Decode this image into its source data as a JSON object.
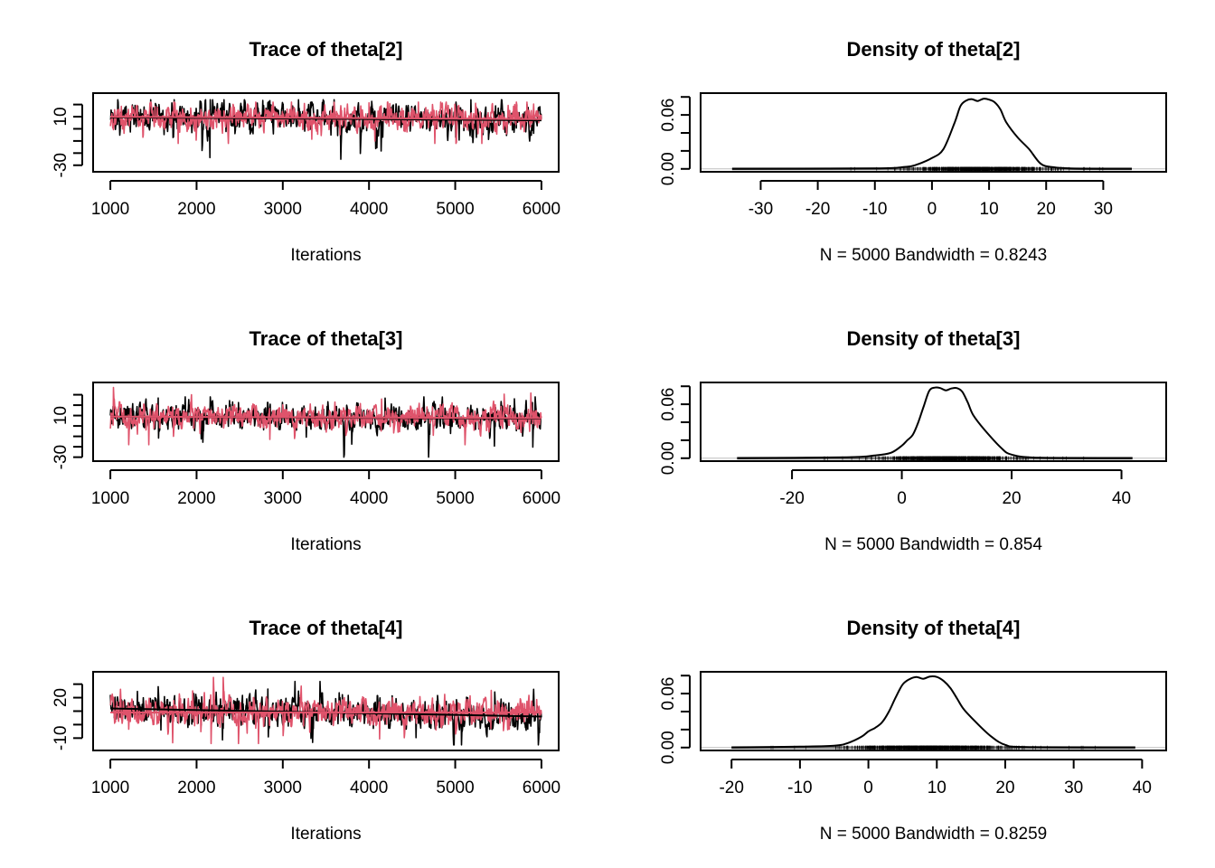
{
  "colors": {
    "chain1": "#000000",
    "chain2": "#DF536B",
    "rug": "#808080",
    "zero_line": "#BEBEBE"
  },
  "chart_data": [
    {
      "type": "line",
      "panel": "trace",
      "title": "Trace of theta[2]",
      "xlabel": "Iterations",
      "ylabel": "",
      "xlim": [
        1000,
        6000
      ],
      "ylim": [
        -33,
        27
      ],
      "x_ticks": [
        1000,
        2000,
        3000,
        4000,
        5000,
        6000
      ],
      "x_tick_labels": [
        "1000",
        "2000",
        "3000",
        "4000",
        "5000",
        "6000"
      ],
      "y_ticks": [
        -30,
        -20,
        -10,
        0,
        10,
        20,
        30
      ],
      "y_tick_labels": [
        "-30",
        "",
        "",
        "",
        "10",
        "",
        ""
      ],
      "series": [
        {
          "name": "chain 1",
          "mean": 8.5,
          "spread": 6,
          "trend_start": 9.5,
          "trend_end": 7,
          "min": -30,
          "max": 24
        },
        {
          "name": "chain 2",
          "mean": 9,
          "spread": 5.5,
          "trend_start": 10,
          "trend_end": 8,
          "min": -12,
          "max": 22
        }
      ]
    },
    {
      "type": "line",
      "panel": "density",
      "title": "Density of theta[2]",
      "xlabel": "N = 5000   Bandwidth = 0.8243",
      "xlim": [
        -37.5,
        38
      ],
      "ylim": [
        0,
        0.081
      ],
      "x_ticks": [
        -30,
        -20,
        -10,
        0,
        10,
        20,
        30
      ],
      "x_tick_labels": [
        "-30",
        "-20",
        "-10",
        "0",
        "10",
        "20",
        "30"
      ],
      "y_ticks": [
        0,
        0.02,
        0.04,
        0.06,
        0.08
      ],
      "y_tick_labels": [
        "0.00",
        "",
        "",
        "0.06",
        ""
      ],
      "rug_range": [
        -35,
        35
      ],
      "x": [
        -35,
        -10,
        -5,
        -3,
        0,
        2,
        4,
        5,
        6,
        7,
        8,
        9,
        10,
        11,
        12,
        13,
        15,
        17,
        19,
        21,
        25,
        35
      ],
      "y": [
        0,
        0.0005,
        0.002,
        0.004,
        0.012,
        0.022,
        0.052,
        0.07,
        0.076,
        0.0775,
        0.0755,
        0.078,
        0.077,
        0.074,
        0.066,
        0.052,
        0.035,
        0.022,
        0.006,
        0.002,
        0.0003,
        0
      ]
    },
    {
      "type": "line",
      "panel": "trace",
      "title": "Trace of theta[3]",
      "xlabel": "Iterations",
      "xlim": [
        1000,
        6000
      ],
      "ylim": [
        -31,
        39
      ],
      "x_ticks": [
        1000,
        2000,
        3000,
        4000,
        5000,
        6000
      ],
      "x_tick_labels": [
        "1000",
        "2000",
        "3000",
        "4000",
        "5000",
        "6000"
      ],
      "y_ticks": [
        -30,
        -20,
        -10,
        0,
        10,
        20,
        30,
        40
      ],
      "y_tick_labels": [
        "-30",
        "",
        "",
        "",
        "10",
        "",
        "",
        ""
      ],
      "series": [
        {
          "name": "chain 1",
          "mean": 8,
          "spread": 6.5,
          "trend_start": 9,
          "trend_end": 7,
          "min": -30,
          "max": 28
        },
        {
          "name": "chain 2",
          "mean": 8.5,
          "spread": 6,
          "trend_start": 9,
          "trend_end": 7.5,
          "min": -18,
          "max": 37
        }
      ]
    },
    {
      "type": "line",
      "panel": "density",
      "title": "Density of theta[3]",
      "xlabel": "N = 5000   Bandwidth = 0.854",
      "xlim": [
        -33.5,
        45
      ],
      "ylim": [
        0,
        0.081
      ],
      "x_ticks": [
        -20,
        0,
        20,
        40
      ],
      "x_tick_labels": [
        "-20",
        "0",
        "20",
        "40"
      ],
      "y_ticks": [
        0,
        0.02,
        0.04,
        0.06,
        0.08
      ],
      "y_tick_labels": [
        "0.00",
        "",
        "",
        "0.06",
        ""
      ],
      "rug_range": [
        -30,
        42
      ],
      "x": [
        -30,
        -10,
        -5,
        -2,
        0,
        1,
        2,
        3,
        4,
        5,
        6,
        7,
        8,
        9,
        10,
        11,
        12,
        13,
        15,
        18,
        20,
        25,
        42
      ],
      "y": [
        0,
        0.001,
        0.003,
        0.006,
        0.014,
        0.02,
        0.026,
        0.04,
        0.058,
        0.075,
        0.0785,
        0.078,
        0.0755,
        0.0775,
        0.078,
        0.074,
        0.062,
        0.048,
        0.032,
        0.012,
        0.004,
        0.0005,
        0
      ]
    },
    {
      "type": "line",
      "panel": "trace",
      "title": "Trace of theta[4]",
      "xlabel": "Iterations",
      "xlim": [
        1000,
        6000
      ],
      "ylim": [
        -17,
        37
      ],
      "x_ticks": [
        1000,
        2000,
        3000,
        4000,
        5000,
        6000
      ],
      "x_tick_labels": [
        "1000",
        "2000",
        "3000",
        "4000",
        "5000",
        "6000"
      ],
      "y_ticks": [
        -10,
        0,
        10,
        20,
        30
      ],
      "y_tick_labels": [
        "-10",
        "",
        "",
        "20",
        ""
      ],
      "series": [
        {
          "name": "chain 1",
          "mean": 8.5,
          "spread": 6,
          "trend_start": 12,
          "trend_end": 6,
          "min": -15,
          "max": 32
        },
        {
          "name": "chain 2",
          "mean": 9,
          "spread": 5.5,
          "trend_start": 9,
          "trend_end": 9,
          "min": -14,
          "max": 35
        }
      ]
    },
    {
      "type": "line",
      "panel": "density",
      "title": "Density of theta[4]",
      "xlabel": "N = 5000   Bandwidth = 0.8259",
      "xlim": [
        -22,
        41
      ],
      "ylim": [
        0,
        0.081
      ],
      "x_ticks": [
        -20,
        -10,
        0,
        10,
        20,
        30,
        40
      ],
      "x_tick_labels": [
        "-20",
        "-10",
        "0",
        "10",
        "20",
        "30",
        "40"
      ],
      "y_ticks": [
        0,
        0.02,
        0.04,
        0.06,
        0.08
      ],
      "y_tick_labels": [
        "0.00",
        "",
        "",
        "0.06",
        ""
      ],
      "rug_range": [
        -20,
        39
      ],
      "x": [
        -20,
        -10,
        -5,
        -3,
        -1,
        0,
        1,
        2,
        3,
        4,
        5,
        6,
        7,
        8,
        9,
        10,
        11,
        12,
        13,
        14,
        16,
        18,
        20,
        23,
        39
      ],
      "y": [
        0,
        0.001,
        0.002,
        0.005,
        0.012,
        0.018,
        0.022,
        0.028,
        0.04,
        0.056,
        0.07,
        0.076,
        0.0785,
        0.0765,
        0.079,
        0.0785,
        0.074,
        0.066,
        0.054,
        0.042,
        0.026,
        0.012,
        0.003,
        0.0005,
        0
      ]
    }
  ]
}
